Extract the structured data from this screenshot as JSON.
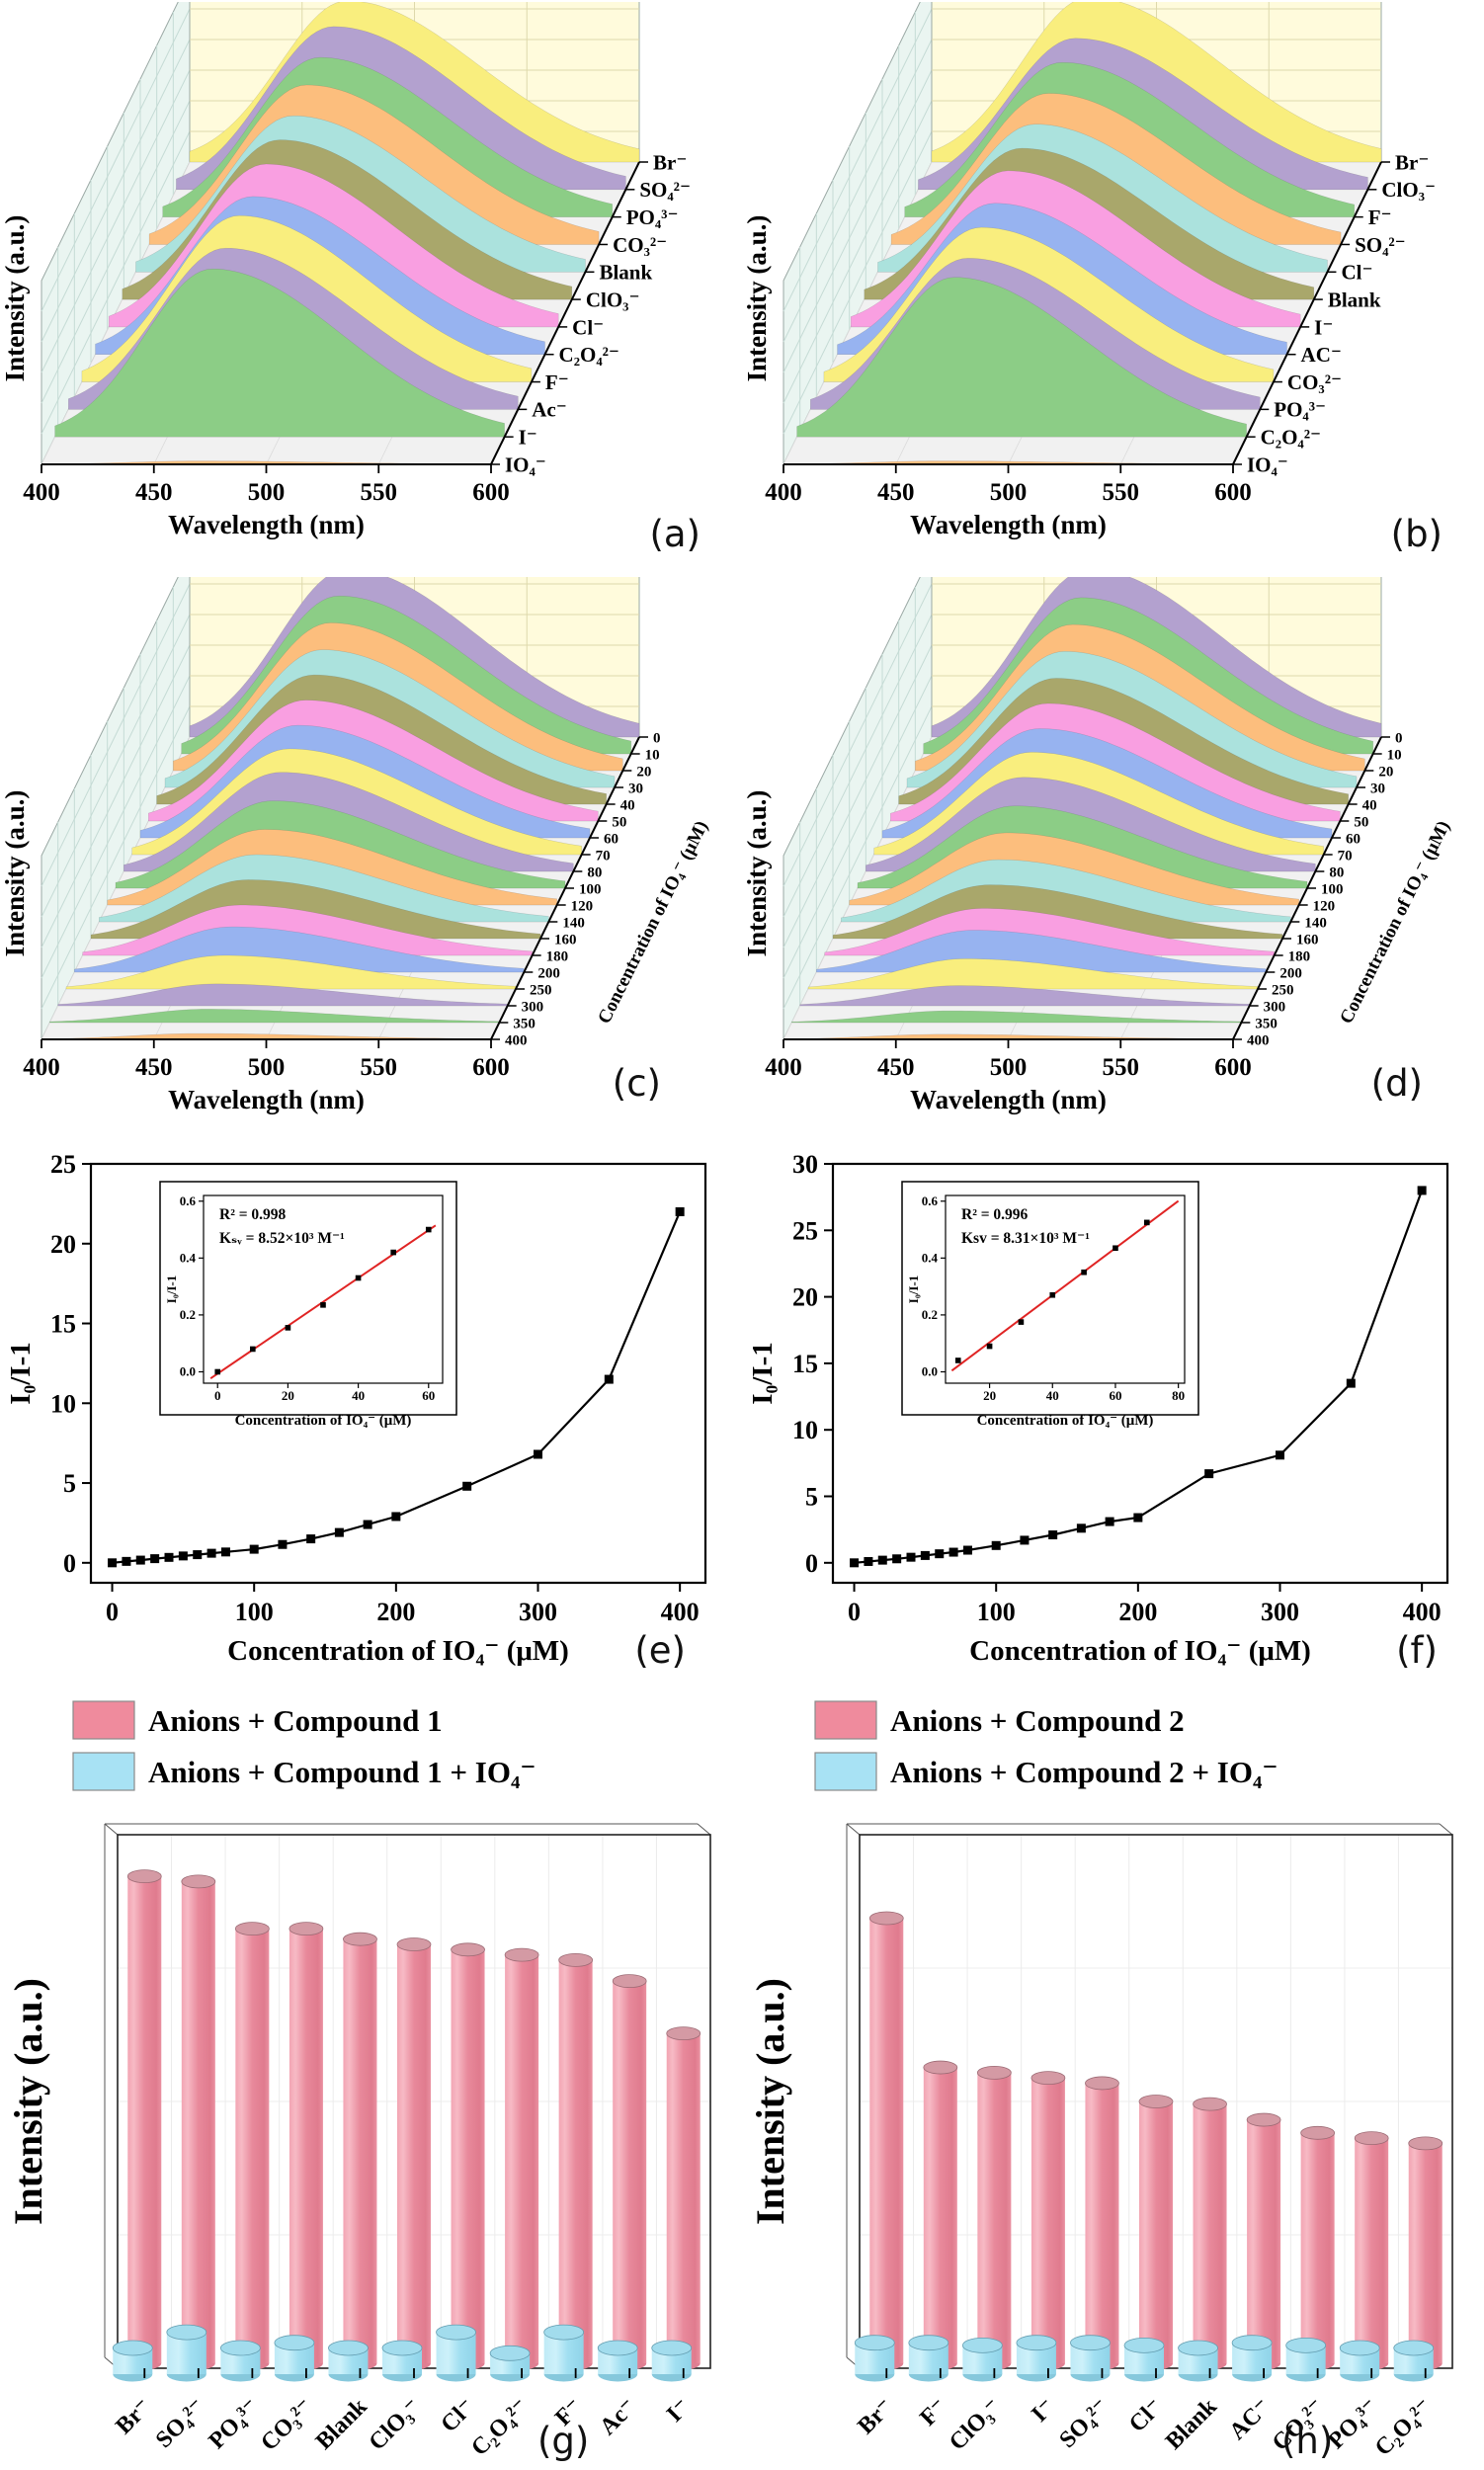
{
  "page": {
    "background": "#ffffff"
  },
  "chart_data": [
    {
      "panel": "a",
      "panel_tag": "(a)",
      "type": "area",
      "variant": "waterfall3d",
      "xlabel": "Wavelength (nm)",
      "ylabel": "Intensity (a.u.)",
      "x_range": [
        400,
        600
      ],
      "xticks": [
        400,
        450,
        500,
        550,
        600
      ],
      "peak_nm": 470,
      "series": [
        {
          "name": "Br⁻",
          "color": "#f9ee7e",
          "rel_height": 0.96
        },
        {
          "name": "SO₄²⁻",
          "color": "#b3a1cf",
          "rel_height": 0.97
        },
        {
          "name": "PO₄³⁻",
          "color": "#8ccd86",
          "rel_height": 0.95
        },
        {
          "name": "CO₃²⁻",
          "color": "#fcbe7d",
          "rel_height": 0.95
        },
        {
          "name": "Blank",
          "color": "#abe2dd",
          "rel_height": 0.93
        },
        {
          "name": "ClO₃⁻",
          "color": "#a9a76b",
          "rel_height": 0.95
        },
        {
          "name": "Cl⁻",
          "color": "#f99fe1",
          "rel_height": 0.97
        },
        {
          "name": "C₂O₄²⁻",
          "color": "#97b3f0",
          "rel_height": 0.94
        },
        {
          "name": "F⁻",
          "color": "#f9ee7e",
          "rel_height": 0.99
        },
        {
          "name": "Ac⁻",
          "color": "#b3a1cf",
          "rel_height": 0.96
        },
        {
          "name": "I⁻",
          "color": "#8ccd86",
          "rel_height": 1.0
        },
        {
          "name": "IO₄⁻",
          "color": "#fcbe7d",
          "rel_height": 0.02
        }
      ]
    },
    {
      "panel": "b",
      "panel_tag": "(b)",
      "type": "area",
      "variant": "waterfall3d",
      "xlabel": "Wavelength (nm)",
      "ylabel": "Intensity (a.u.)",
      "x_range": [
        400,
        600
      ],
      "xticks": [
        400,
        450,
        500,
        550,
        600
      ],
      "peak_nm": 470,
      "series": [
        {
          "name": "Br⁻",
          "color": "#f9ee7e",
          "rel_height": 0.98
        },
        {
          "name": "ClO₃⁻",
          "color": "#b3a1cf",
          "rel_height": 0.9
        },
        {
          "name": "F⁻",
          "color": "#8ccd86",
          "rel_height": 0.92
        },
        {
          "name": "SO₄²⁻",
          "color": "#fcbe7d",
          "rel_height": 0.9
        },
        {
          "name": "Cl⁻",
          "color": "#abe2dd",
          "rel_height": 0.88
        },
        {
          "name": "Blank",
          "color": "#a9a76b",
          "rel_height": 0.9
        },
        {
          "name": "I⁻",
          "color": "#f99fe1",
          "rel_height": 0.93
        },
        {
          "name": "AC⁻",
          "color": "#97b3f0",
          "rel_height": 0.9
        },
        {
          "name": "CO₃²⁻",
          "color": "#f9ee7e",
          "rel_height": 0.92
        },
        {
          "name": "PO₄³⁻",
          "color": "#b3a1cf",
          "rel_height": 0.9
        },
        {
          "name": "C₂O₄²⁻",
          "color": "#8ccd86",
          "rel_height": 0.95
        },
        {
          "name": "IO₄⁻",
          "color": "#fcbe7d",
          "rel_height": 0.02
        }
      ]
    },
    {
      "panel": "c",
      "panel_tag": "(c)",
      "type": "area",
      "variant": "waterfall3d",
      "xlabel": "Wavelength (nm)",
      "ylabel": "Intensity (a.u.)",
      "depth_axis_label": "Concentration of IO₄⁻ (μM)",
      "x_range": [
        400,
        600
      ],
      "xticks": [
        400,
        450,
        500,
        550,
        600
      ],
      "peak_nm": 470,
      "series": [
        {
          "name": "0",
          "color": "#b3a1cf",
          "rel_height": 1.0
        },
        {
          "name": "10",
          "color": "#8ccd86",
          "rel_height": 0.94
        },
        {
          "name": "20",
          "color": "#fcbe7d",
          "rel_height": 0.88
        },
        {
          "name": "30",
          "color": "#abe2dd",
          "rel_height": 0.82
        },
        {
          "name": "40",
          "color": "#a9a76b",
          "rel_height": 0.77
        },
        {
          "name": "50",
          "color": "#f99fe1",
          "rel_height": 0.72
        },
        {
          "name": "60",
          "color": "#97b3f0",
          "rel_height": 0.67
        },
        {
          "name": "70",
          "color": "#f9ee7e",
          "rel_height": 0.63
        },
        {
          "name": "80",
          "color": "#b3a1cf",
          "rel_height": 0.59
        },
        {
          "name": "100",
          "color": "#8ccd86",
          "rel_height": 0.52
        },
        {
          "name": "120",
          "color": "#fcbe7d",
          "rel_height": 0.45
        },
        {
          "name": "140",
          "color": "#abe2dd",
          "rel_height": 0.4
        },
        {
          "name": "160",
          "color": "#a9a76b",
          "rel_height": 0.35
        },
        {
          "name": "180",
          "color": "#f99fe1",
          "rel_height": 0.3
        },
        {
          "name": "200",
          "color": "#97b3f0",
          "rel_height": 0.27
        },
        {
          "name": "250",
          "color": "#f9ee7e",
          "rel_height": 0.2
        },
        {
          "name": "300",
          "color": "#b3a1cf",
          "rel_height": 0.13
        },
        {
          "name": "350",
          "color": "#8ccd86",
          "rel_height": 0.08
        },
        {
          "name": "400",
          "color": "#fcbe7d",
          "rel_height": 0.035
        }
      ]
    },
    {
      "panel": "d",
      "panel_tag": "(d)",
      "type": "area",
      "variant": "waterfall3d",
      "xlabel": "Wavelength (nm)",
      "ylabel": "Intensity (a.u.)",
      "depth_axis_label": "Concentration of IO₄⁻ (μM)",
      "x_range": [
        400,
        600
      ],
      "xticks": [
        400,
        450,
        500,
        550,
        600
      ],
      "peak_nm": 470,
      "series": [
        {
          "name": "0",
          "color": "#b3a1cf",
          "rel_height": 1.0
        },
        {
          "name": "10",
          "color": "#8ccd86",
          "rel_height": 0.93
        },
        {
          "name": "20",
          "color": "#fcbe7d",
          "rel_height": 0.87
        },
        {
          "name": "30",
          "color": "#abe2dd",
          "rel_height": 0.81
        },
        {
          "name": "40",
          "color": "#a9a76b",
          "rel_height": 0.75
        },
        {
          "name": "50",
          "color": "#f99fe1",
          "rel_height": 0.7
        },
        {
          "name": "60",
          "color": "#97b3f0",
          "rel_height": 0.65
        },
        {
          "name": "70",
          "color": "#f9ee7e",
          "rel_height": 0.61
        },
        {
          "name": "80",
          "color": "#b3a1cf",
          "rel_height": 0.56
        },
        {
          "name": "100",
          "color": "#8ccd86",
          "rel_height": 0.49
        },
        {
          "name": "120",
          "color": "#fcbe7d",
          "rel_height": 0.43
        },
        {
          "name": "140",
          "color": "#abe2dd",
          "rel_height": 0.37
        },
        {
          "name": "160",
          "color": "#a9a76b",
          "rel_height": 0.32
        },
        {
          "name": "180",
          "color": "#f99fe1",
          "rel_height": 0.28
        },
        {
          "name": "200",
          "color": "#97b3f0",
          "rel_height": 0.25
        },
        {
          "name": "250",
          "color": "#f9ee7e",
          "rel_height": 0.18
        },
        {
          "name": "300",
          "color": "#b3a1cf",
          "rel_height": 0.12
        },
        {
          "name": "350",
          "color": "#8ccd86",
          "rel_height": 0.07
        },
        {
          "name": "400",
          "color": "#fcbe7d",
          "rel_height": 0.03
        }
      ]
    },
    {
      "panel": "e",
      "panel_tag": "(e)",
      "type": "line",
      "marker": "square",
      "line_color": "#000000",
      "xlabel": "Concentration of IO₄⁻ (μM)",
      "ylabel": "I₀/I-1",
      "xticks": [
        0,
        100,
        200,
        300,
        400
      ],
      "yticks": [
        0,
        5,
        10,
        15,
        20,
        25
      ],
      "x": [
        0,
        10,
        20,
        30,
        40,
        50,
        60,
        70,
        80,
        100,
        120,
        140,
        160,
        180,
        200,
        250,
        300,
        350,
        400
      ],
      "y": [
        0,
        0.09,
        0.17,
        0.26,
        0.34,
        0.43,
        0.51,
        0.6,
        0.68,
        0.85,
        1.15,
        1.5,
        1.9,
        2.4,
        2.9,
        4.8,
        6.8,
        11.5,
        22
      ],
      "inset": {
        "annotations": [
          "R² = 0.998",
          "Kₛᵥ = 8.52×10³ M⁻¹"
        ],
        "xlabel": "Concentration of IO₄⁻ (μM)",
        "ylabel": "I₀/I-1",
        "xlim": [
          -4,
          64
        ],
        "xticks": [
          0,
          20,
          40,
          60
        ],
        "ytick_values": [
          0,
          0.2,
          0.4,
          0.6
        ],
        "ytick_labels": [
          "0.0",
          "0.2",
          "0.4",
          "0.6"
        ],
        "x": [
          0,
          10,
          20,
          30,
          40,
          50,
          60
        ],
        "y": [
          0.0,
          0.08,
          0.155,
          0.235,
          0.33,
          0.42,
          0.5
        ],
        "line_color": "#e02424"
      }
    },
    {
      "panel": "f",
      "panel_tag": "(f)",
      "type": "line",
      "marker": "square",
      "line_color": "#000000",
      "xlabel": "Concentration of IO₄⁻ (μM)",
      "ylabel": "I₀/I-1",
      "xticks": [
        0,
        100,
        200,
        300,
        400
      ],
      "yticks": [
        0,
        5,
        10,
        15,
        20,
        25,
        30
      ],
      "x": [
        0,
        10,
        20,
        30,
        40,
        50,
        60,
        70,
        80,
        100,
        120,
        140,
        160,
        180,
        200,
        250,
        300,
        350,
        400
      ],
      "y": [
        0,
        0.1,
        0.2,
        0.3,
        0.42,
        0.55,
        0.68,
        0.8,
        0.95,
        1.3,
        1.7,
        2.1,
        2.6,
        3.1,
        3.4,
        6.7,
        8.1,
        13.5,
        28
      ],
      "inset": {
        "annotations": [
          "R² = 0.996",
          "Ksv = 8.31×10³ M⁻¹"
        ],
        "xlabel": "Concentration of IO₄⁻ (μM)",
        "ylabel": "I₀/I-1",
        "xlim": [
          6,
          82
        ],
        "xticks": [
          20,
          40,
          60,
          80
        ],
        "ytick_values": [
          0,
          0.2,
          0.4,
          0.6
        ],
        "ytick_labels": [
          "0.0",
          "0.2",
          "0.4",
          "0.6"
        ],
        "x": [
          10,
          20,
          30,
          40,
          50,
          60,
          70
        ],
        "y": [
          0.04,
          0.09,
          0.175,
          0.27,
          0.35,
          0.435,
          0.525
        ],
        "line_color": "#e02424"
      }
    },
    {
      "panel": "g",
      "panel_tag": "(g)",
      "type": "bar",
      "variant": "cylinder3d",
      "ylabel": "Intensity (a.u.)",
      "categories": [
        "Br⁻",
        "SO₄²⁻",
        "PO₄³⁻",
        "CO₃²⁻",
        "Blank",
        "ClO₃⁻",
        "Cl⁻",
        "C₂O₄²⁻",
        "F⁻",
        "Ac⁻",
        "I⁻"
      ],
      "legend": [
        {
          "label": "Anions + Compound 1",
          "color": "#ef8b9d"
        },
        {
          "label": "Anions + Compound 1 + IO₄⁻",
          "color": "#a8e2f4"
        }
      ],
      "series": [
        {
          "name": "Anions + Compound 1",
          "color": "#ef8b9d",
          "values": [
            0.93,
            0.92,
            0.83,
            0.83,
            0.81,
            0.8,
            0.79,
            0.78,
            0.77,
            0.73,
            0.63
          ]
        },
        {
          "name": "Anions + Compound 1 + IO₄⁻",
          "color": "#a8e2f4",
          "values": [
            0.05,
            0.08,
            0.05,
            0.06,
            0.05,
            0.05,
            0.08,
            0.04,
            0.08,
            0.05,
            0.05
          ]
        }
      ]
    },
    {
      "panel": "h",
      "panel_tag": "(h)",
      "type": "bar",
      "variant": "cylinder3d",
      "ylabel": "Intensity (a.u.)",
      "categories": [
        "Br⁻",
        "F⁻",
        "ClO₃⁻",
        "I⁻",
        "SO₄²⁻",
        "Cl⁻",
        "Blank",
        "AC⁻",
        "CO₃²⁻",
        "PO₄³⁻",
        "C₂O₄²⁻"
      ],
      "legend": [
        {
          "label": "Anions + Compound 2",
          "color": "#ef8b9d"
        },
        {
          "label": "Anions + Compound 2 + IO₄⁻",
          "color": "#a8e2f4"
        }
      ],
      "series": [
        {
          "name": "Anions + Compound 2",
          "color": "#ef8b9d",
          "values": [
            0.85,
            0.565,
            0.555,
            0.545,
            0.535,
            0.5,
            0.495,
            0.465,
            0.44,
            0.43,
            0.42
          ]
        },
        {
          "name": "Anions + Compound 2 + IO₄⁻",
          "color": "#a8e2f4",
          "values": [
            0.06,
            0.06,
            0.055,
            0.06,
            0.06,
            0.055,
            0.05,
            0.06,
            0.055,
            0.05,
            0.05
          ]
        }
      ]
    }
  ]
}
